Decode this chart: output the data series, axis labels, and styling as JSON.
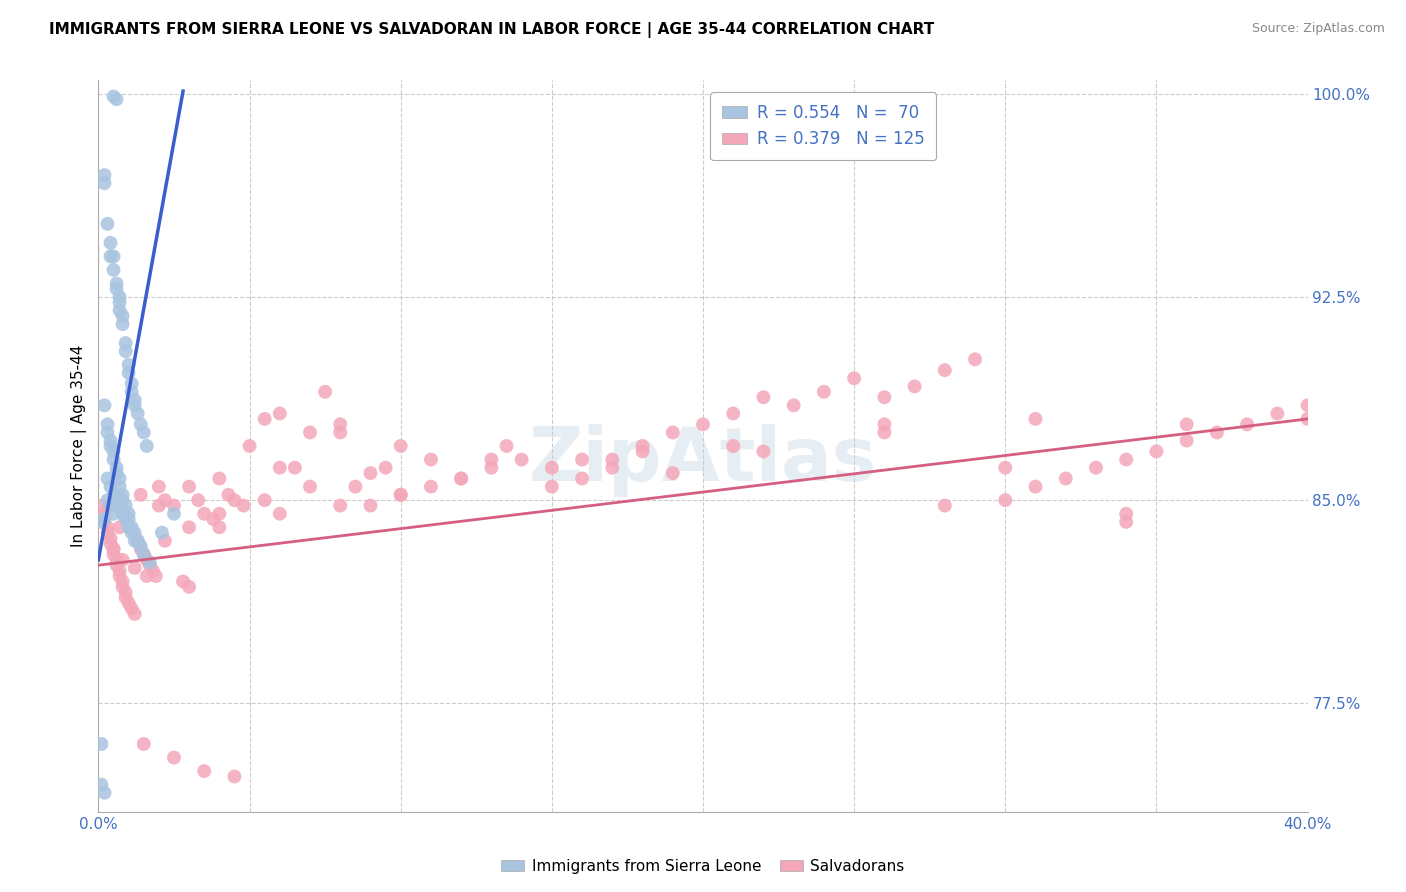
{
  "title": "IMMIGRANTS FROM SIERRA LEONE VS SALVADORAN IN LABOR FORCE | AGE 35-44 CORRELATION CHART",
  "source": "Source: ZipAtlas.com",
  "ylabel": "In Labor Force | Age 35-44",
  "xlim": [
    0.0,
    0.4
  ],
  "ylim": [
    0.735,
    1.005
  ],
  "xticks": [
    0.0,
    0.05,
    0.1,
    0.15,
    0.2,
    0.25,
    0.3,
    0.35,
    0.4
  ],
  "yticks": [
    0.775,
    0.85,
    0.925,
    1.0
  ],
  "yticklabels": [
    "77.5%",
    "85.0%",
    "92.5%",
    "100.0%"
  ],
  "legend1_label": "R = 0.554   N =  70",
  "legend2_label": "R = 0.379   N = 125",
  "blue_dot_color": "#a8c4e0",
  "pink_dot_color": "#f4a7b9",
  "blue_line_color": "#3a5fcd",
  "pink_line_color": "#d45f80",
  "watermark": "ZipAtlas",
  "blue_scatter_x": [
    0.005,
    0.006,
    0.002,
    0.002,
    0.003,
    0.004,
    0.004,
    0.005,
    0.005,
    0.006,
    0.006,
    0.007,
    0.007,
    0.007,
    0.008,
    0.008,
    0.009,
    0.009,
    0.01,
    0.01,
    0.011,
    0.011,
    0.012,
    0.012,
    0.013,
    0.014,
    0.015,
    0.016,
    0.002,
    0.003,
    0.003,
    0.004,
    0.004,
    0.005,
    0.005,
    0.006,
    0.006,
    0.007,
    0.007,
    0.008,
    0.008,
    0.009,
    0.01,
    0.01,
    0.011,
    0.012,
    0.013,
    0.003,
    0.004,
    0.005,
    0.006,
    0.007,
    0.008,
    0.009,
    0.01,
    0.011,
    0.012,
    0.014,
    0.015,
    0.017,
    0.003,
    0.004,
    0.005,
    0.002,
    0.001,
    0.021,
    0.025,
    0.001,
    0.001,
    0.002
  ],
  "blue_scatter_y": [
    0.999,
    0.998,
    0.97,
    0.967,
    0.952,
    0.945,
    0.94,
    0.94,
    0.935,
    0.93,
    0.928,
    0.925,
    0.923,
    0.92,
    0.918,
    0.915,
    0.908,
    0.905,
    0.9,
    0.897,
    0.893,
    0.89,
    0.887,
    0.885,
    0.882,
    0.878,
    0.875,
    0.87,
    0.885,
    0.878,
    0.875,
    0.872,
    0.87,
    0.868,
    0.865,
    0.862,
    0.86,
    0.858,
    0.855,
    0.852,
    0.85,
    0.848,
    0.845,
    0.843,
    0.84,
    0.838,
    0.835,
    0.858,
    0.855,
    0.852,
    0.85,
    0.848,
    0.845,
    0.843,
    0.84,
    0.838,
    0.835,
    0.833,
    0.83,
    0.827,
    0.85,
    0.848,
    0.845,
    0.843,
    0.76,
    0.838,
    0.845,
    0.842,
    0.745,
    0.742
  ],
  "pink_scatter_x": [
    0.001,
    0.002,
    0.002,
    0.003,
    0.003,
    0.004,
    0.004,
    0.005,
    0.005,
    0.006,
    0.006,
    0.007,
    0.007,
    0.008,
    0.008,
    0.009,
    0.009,
    0.01,
    0.011,
    0.012,
    0.013,
    0.014,
    0.015,
    0.016,
    0.017,
    0.018,
    0.019,
    0.02,
    0.022,
    0.025,
    0.028,
    0.03,
    0.033,
    0.035,
    0.038,
    0.04,
    0.043,
    0.045,
    0.048,
    0.05,
    0.055,
    0.06,
    0.065,
    0.07,
    0.075,
    0.08,
    0.085,
    0.09,
    0.095,
    0.1,
    0.11,
    0.12,
    0.13,
    0.14,
    0.15,
    0.16,
    0.17,
    0.18,
    0.19,
    0.2,
    0.21,
    0.22,
    0.23,
    0.24,
    0.25,
    0.26,
    0.27,
    0.28,
    0.29,
    0.3,
    0.31,
    0.32,
    0.33,
    0.34,
    0.35,
    0.36,
    0.37,
    0.38,
    0.39,
    0.4,
    0.015,
    0.025,
    0.035,
    0.045,
    0.06,
    0.08,
    0.1,
    0.12,
    0.15,
    0.18,
    0.005,
    0.008,
    0.012,
    0.016,
    0.022,
    0.03,
    0.04,
    0.055,
    0.07,
    0.09,
    0.11,
    0.135,
    0.16,
    0.19,
    0.22,
    0.26,
    0.3,
    0.34,
    0.007,
    0.014,
    0.02,
    0.03,
    0.04,
    0.06,
    0.08,
    0.1,
    0.13,
    0.17,
    0.21,
    0.26,
    0.31,
    0.36,
    0.4,
    0.28,
    0.34
  ],
  "pink_scatter_y": [
    0.848,
    0.845,
    0.843,
    0.84,
    0.838,
    0.836,
    0.834,
    0.832,
    0.83,
    0.828,
    0.826,
    0.824,
    0.822,
    0.82,
    0.818,
    0.816,
    0.814,
    0.812,
    0.81,
    0.808,
    0.835,
    0.832,
    0.83,
    0.828,
    0.826,
    0.824,
    0.822,
    0.855,
    0.85,
    0.848,
    0.82,
    0.818,
    0.85,
    0.845,
    0.843,
    0.84,
    0.852,
    0.85,
    0.848,
    0.87,
    0.88,
    0.882,
    0.862,
    0.875,
    0.89,
    0.878,
    0.855,
    0.848,
    0.862,
    0.852,
    0.855,
    0.858,
    0.862,
    0.865,
    0.855,
    0.858,
    0.865,
    0.87,
    0.875,
    0.878,
    0.882,
    0.888,
    0.885,
    0.89,
    0.895,
    0.888,
    0.892,
    0.898,
    0.902,
    0.85,
    0.855,
    0.858,
    0.862,
    0.865,
    0.868,
    0.872,
    0.875,
    0.878,
    0.882,
    0.885,
    0.76,
    0.755,
    0.75,
    0.748,
    0.845,
    0.848,
    0.852,
    0.858,
    0.862,
    0.868,
    0.832,
    0.828,
    0.825,
    0.822,
    0.835,
    0.84,
    0.845,
    0.85,
    0.855,
    0.86,
    0.865,
    0.87,
    0.865,
    0.86,
    0.868,
    0.878,
    0.862,
    0.845,
    0.84,
    0.852,
    0.848,
    0.855,
    0.858,
    0.862,
    0.875,
    0.87,
    0.865,
    0.862,
    0.87,
    0.875,
    0.88,
    0.878,
    0.88,
    0.848,
    0.842
  ],
  "blue_line_x0": 0.0,
  "blue_line_x1": 0.028,
  "blue_line_y0": 0.828,
  "blue_line_y1": 1.001,
  "pink_line_x0": 0.0,
  "pink_line_x1": 0.4,
  "pink_line_y0": 0.826,
  "pink_line_y1": 0.88
}
